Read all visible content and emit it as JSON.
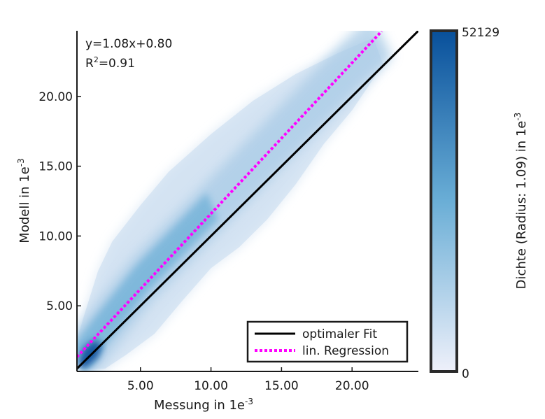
{
  "chart_data": {
    "type": "scatter",
    "title": "",
    "xlabel": "Messung in 1e",
    "xlabel_exp": "-3",
    "ylabel": "Modell in 1e",
    "ylabel_exp": "-3",
    "xlim": [
      0.5,
      24.7
    ],
    "ylim": [
      0.3,
      24.7
    ],
    "x_ticks": [
      5,
      10,
      15,
      20
    ],
    "x_tick_labels": [
      "5.00",
      "10.00",
      "15.00",
      "20.00"
    ],
    "y_ticks": [
      5,
      10,
      15,
      20
    ],
    "y_tick_labels": [
      "5.00",
      "10.00",
      "15.00",
      "20.00"
    ],
    "grid": false,
    "annotations": {
      "equation": "y=1.08x+0.80",
      "r2_prefix": "R",
      "r2_exp": "2",
      "r2_suffix": "=0.91"
    },
    "series": [
      {
        "name": "optimaler Fit",
        "kind": "line",
        "style": "solid",
        "color": "#000000",
        "x": [
          0.5,
          24.7
        ],
        "y": [
          0.5,
          24.7
        ]
      },
      {
        "name": "lin. Regression",
        "kind": "line",
        "style": "dotted",
        "color": "#ff00ff",
        "slope": 1.08,
        "intercept": 0.8,
        "x": [
          0.5,
          22.1
        ],
        "y": [
          1.34,
          24.67
        ]
      }
    ],
    "density": {
      "description_ridge": [
        [
          0.5,
          1.2
        ],
        [
          2,
          3.2
        ],
        [
          5,
          7.0
        ],
        [
          10,
          12.2
        ],
        [
          15,
          17.4
        ],
        [
          20,
          22.6
        ],
        [
          22,
          24.4
        ]
      ],
      "upper_edge": [
        [
          0.5,
          2.6
        ],
        [
          1,
          4.3
        ],
        [
          2,
          7.5
        ],
        [
          3,
          9.6
        ],
        [
          5,
          12.2
        ],
        [
          7,
          14.6
        ],
        [
          10,
          17.3
        ],
        [
          13,
          19.7
        ],
        [
          16,
          21.6
        ],
        [
          19,
          23.1
        ],
        [
          21.5,
          24.2
        ]
      ],
      "lower_edge": [
        [
          22.2,
          22.3
        ],
        [
          20,
          19.0
        ],
        [
          18,
          16.6
        ],
        [
          16,
          13.7
        ],
        [
          14,
          11.2
        ],
        [
          12,
          9.2
        ],
        [
          10,
          7.7
        ],
        [
          8,
          5.4
        ],
        [
          6,
          3.0
        ],
        [
          4,
          1.5
        ],
        [
          2.5,
          0.5
        ],
        [
          0.5,
          0.5
        ]
      ],
      "core": [
        [
          0.7,
          0.5
        ],
        [
          1.2,
          0.6
        ],
        [
          2.0,
          1.3
        ],
        [
          2.3,
          2.2
        ],
        [
          1.8,
          2.6
        ],
        [
          1.0,
          2.0
        ],
        [
          0.6,
          1.1
        ]
      ]
    },
    "legend": {
      "position": "bottom-right",
      "entries": [
        "optimaler Fit",
        "lin. Regression"
      ]
    },
    "colorbar": {
      "label": "Dichte (Radius: 1.09) in 1e",
      "label_exp": "-3",
      "min": 0,
      "max": 52129,
      "min_label": "0",
      "max_label": "52129",
      "color_low": "#eef0fa",
      "color_high": "#08509b"
    }
  }
}
